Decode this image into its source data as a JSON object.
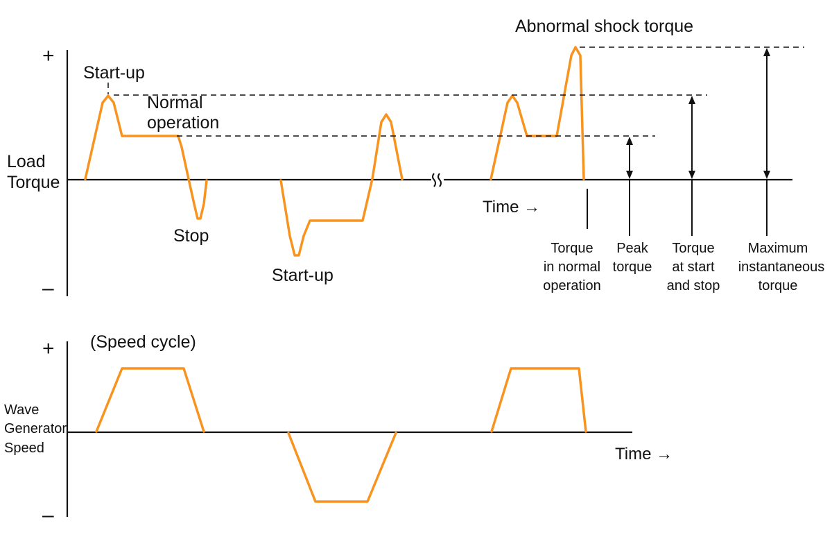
{
  "top_plot": {
    "y_axis_label_line1": "Load",
    "y_axis_label_line2": "Torque",
    "plus_sign": "+",
    "minus_sign": "–",
    "time_label": "Time →",
    "annotations": {
      "startup_top": "Start-up",
      "normal_line1": "Normal",
      "normal_line2": "operation",
      "stop": "Stop",
      "startup_bottom": "Start-up",
      "abnormal_shock": "Abnormal shock torque"
    },
    "legend_labels": {
      "torque_normal": [
        "Torque",
        "in normal",
        "operation"
      ],
      "peak_torque": [
        "Peak",
        "torque"
      ],
      "torque_start_stop": [
        "Torque",
        "at start",
        "and stop"
      ],
      "max_instantaneous": [
        "Maximum",
        "instantaneous",
        "torque"
      ]
    },
    "break_symbol": "≈"
  },
  "bottom_plot": {
    "title": "(Speed cycle)",
    "y_axis_label_line1": "Wave",
    "y_axis_label_line2": "Generator",
    "y_axis_label_line3": "Speed",
    "plus_sign": "+",
    "minus_sign": "–",
    "time_label": "Time →"
  },
  "colors": {
    "waveform": "#F7931E",
    "axes": "#111111"
  }
}
